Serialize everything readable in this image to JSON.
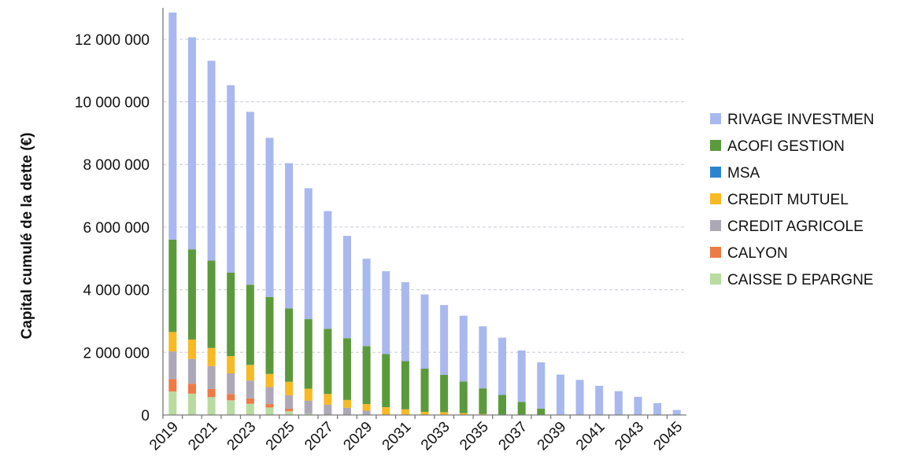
{
  "chart_data": {
    "type": "bar",
    "stacked": true,
    "ylabel": "Capital cumulé de la dette (€)",
    "xlabel": "",
    "ylim": [
      0,
      13000000
    ],
    "y_ticks": [
      0,
      2000000,
      4000000,
      6000000,
      8000000,
      10000000,
      12000000
    ],
    "y_tick_labels": [
      "0",
      "2 000 000",
      "4 000 000",
      "6 000 000",
      "8 000 000",
      "10 000 000",
      "12 000 000"
    ],
    "grid": true,
    "legend_position": "right",
    "categories": [
      "2019",
      "2020",
      "2021",
      "2022",
      "2023",
      "2024",
      "2025",
      "2026",
      "2027",
      "2028",
      "2029",
      "2030",
      "2031",
      "2032",
      "2033",
      "2034",
      "2035",
      "2036",
      "2037",
      "2038",
      "2039",
      "2040",
      "2041",
      "2042",
      "2043",
      "2044",
      "2045"
    ],
    "x_tick_labels": [
      "2019",
      "2021",
      "2023",
      "2025",
      "2027",
      "2029",
      "2031",
      "2033",
      "2035",
      "2037",
      "2039",
      "2041",
      "2043",
      "2045"
    ],
    "series": [
      {
        "name": "CAISSE D EPARGNE",
        "color": "#b9dba0",
        "values": [
          750000,
          680000,
          570000,
          470000,
          360000,
          240000,
          120000,
          40000,
          0,
          0,
          0,
          0,
          0,
          0,
          0,
          0,
          0,
          0,
          0,
          0,
          0,
          0,
          0,
          0,
          0,
          0,
          0
        ]
      },
      {
        "name": "CALYON",
        "color": "#ee7a45",
        "values": [
          400000,
          320000,
          260000,
          200000,
          170000,
          110000,
          80000,
          0,
          0,
          0,
          0,
          0,
          0,
          0,
          0,
          0,
          0,
          0,
          0,
          0,
          0,
          0,
          0,
          0,
          0,
          0,
          0
        ]
      },
      {
        "name": "CREDIT AGRICOLE",
        "color": "#ada8b6",
        "values": [
          880000,
          790000,
          730000,
          660000,
          570000,
          540000,
          430000,
          420000,
          330000,
          230000,
          140000,
          0,
          0,
          0,
          0,
          0,
          0,
          0,
          0,
          0,
          0,
          0,
          0,
          0,
          0,
          0,
          0
        ]
      },
      {
        "name": "CREDIT MUTUEL",
        "color": "#f7b924",
        "values": [
          620000,
          620000,
          580000,
          550000,
          500000,
          420000,
          430000,
          380000,
          340000,
          250000,
          210000,
          250000,
          180000,
          100000,
          90000,
          60000,
          30000,
          0,
          0,
          0,
          0,
          0,
          0,
          0,
          0,
          0,
          0
        ]
      },
      {
        "name": "MSA",
        "color": "#2b84d0",
        "values": [
          0,
          0,
          0,
          0,
          0,
          0,
          0,
          0,
          0,
          0,
          0,
          0,
          0,
          0,
          0,
          0,
          0,
          0,
          0,
          0,
          0,
          0,
          0,
          0,
          0,
          0,
          0
        ]
      },
      {
        "name": "ACOFI GESTION",
        "color": "#5b9a3c",
        "values": [
          2950000,
          2880000,
          2790000,
          2670000,
          2560000,
          2460000,
          2340000,
          2220000,
          2080000,
          1970000,
          1850000,
          1700000,
          1540000,
          1380000,
          1190000,
          1010000,
          820000,
          640000,
          420000,
          200000,
          0,
          0,
          0,
          0,
          0,
          0,
          0
        ]
      },
      {
        "name": "RIVAGE INVESTMEN",
        "color": "#a9b8ee",
        "values": [
          7250000,
          6770000,
          6380000,
          5980000,
          5520000,
          5080000,
          4640000,
          4180000,
          3760000,
          3270000,
          2790000,
          2640000,
          2520000,
          2370000,
          2230000,
          2100000,
          1980000,
          1830000,
          1640000,
          1480000,
          1290000,
          1120000,
          930000,
          760000,
          580000,
          380000,
          160000
        ]
      }
    ]
  }
}
